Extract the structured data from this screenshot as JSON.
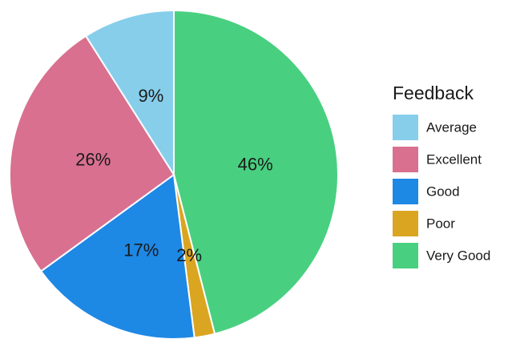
{
  "chart_data": {
    "type": "pie",
    "legend_title": "Feedback",
    "legend_position": "right",
    "slices": [
      {
        "name": "Average",
        "value": 9,
        "label": "9%",
        "color": "#87ceeb"
      },
      {
        "name": "Excellent",
        "value": 26,
        "label": "26%",
        "color": "#d97090"
      },
      {
        "name": "Good",
        "value": 17,
        "label": "17%",
        "color": "#1e88e5"
      },
      {
        "name": "Poor",
        "value": 2,
        "label": "2%",
        "color": "#daa520"
      },
      {
        "name": "Very Good",
        "value": 46,
        "label": "46%",
        "color": "#48d080"
      }
    ],
    "start": "12 o'clock",
    "direction": "counterclockwise from Very Good (clockwise)"
  }
}
